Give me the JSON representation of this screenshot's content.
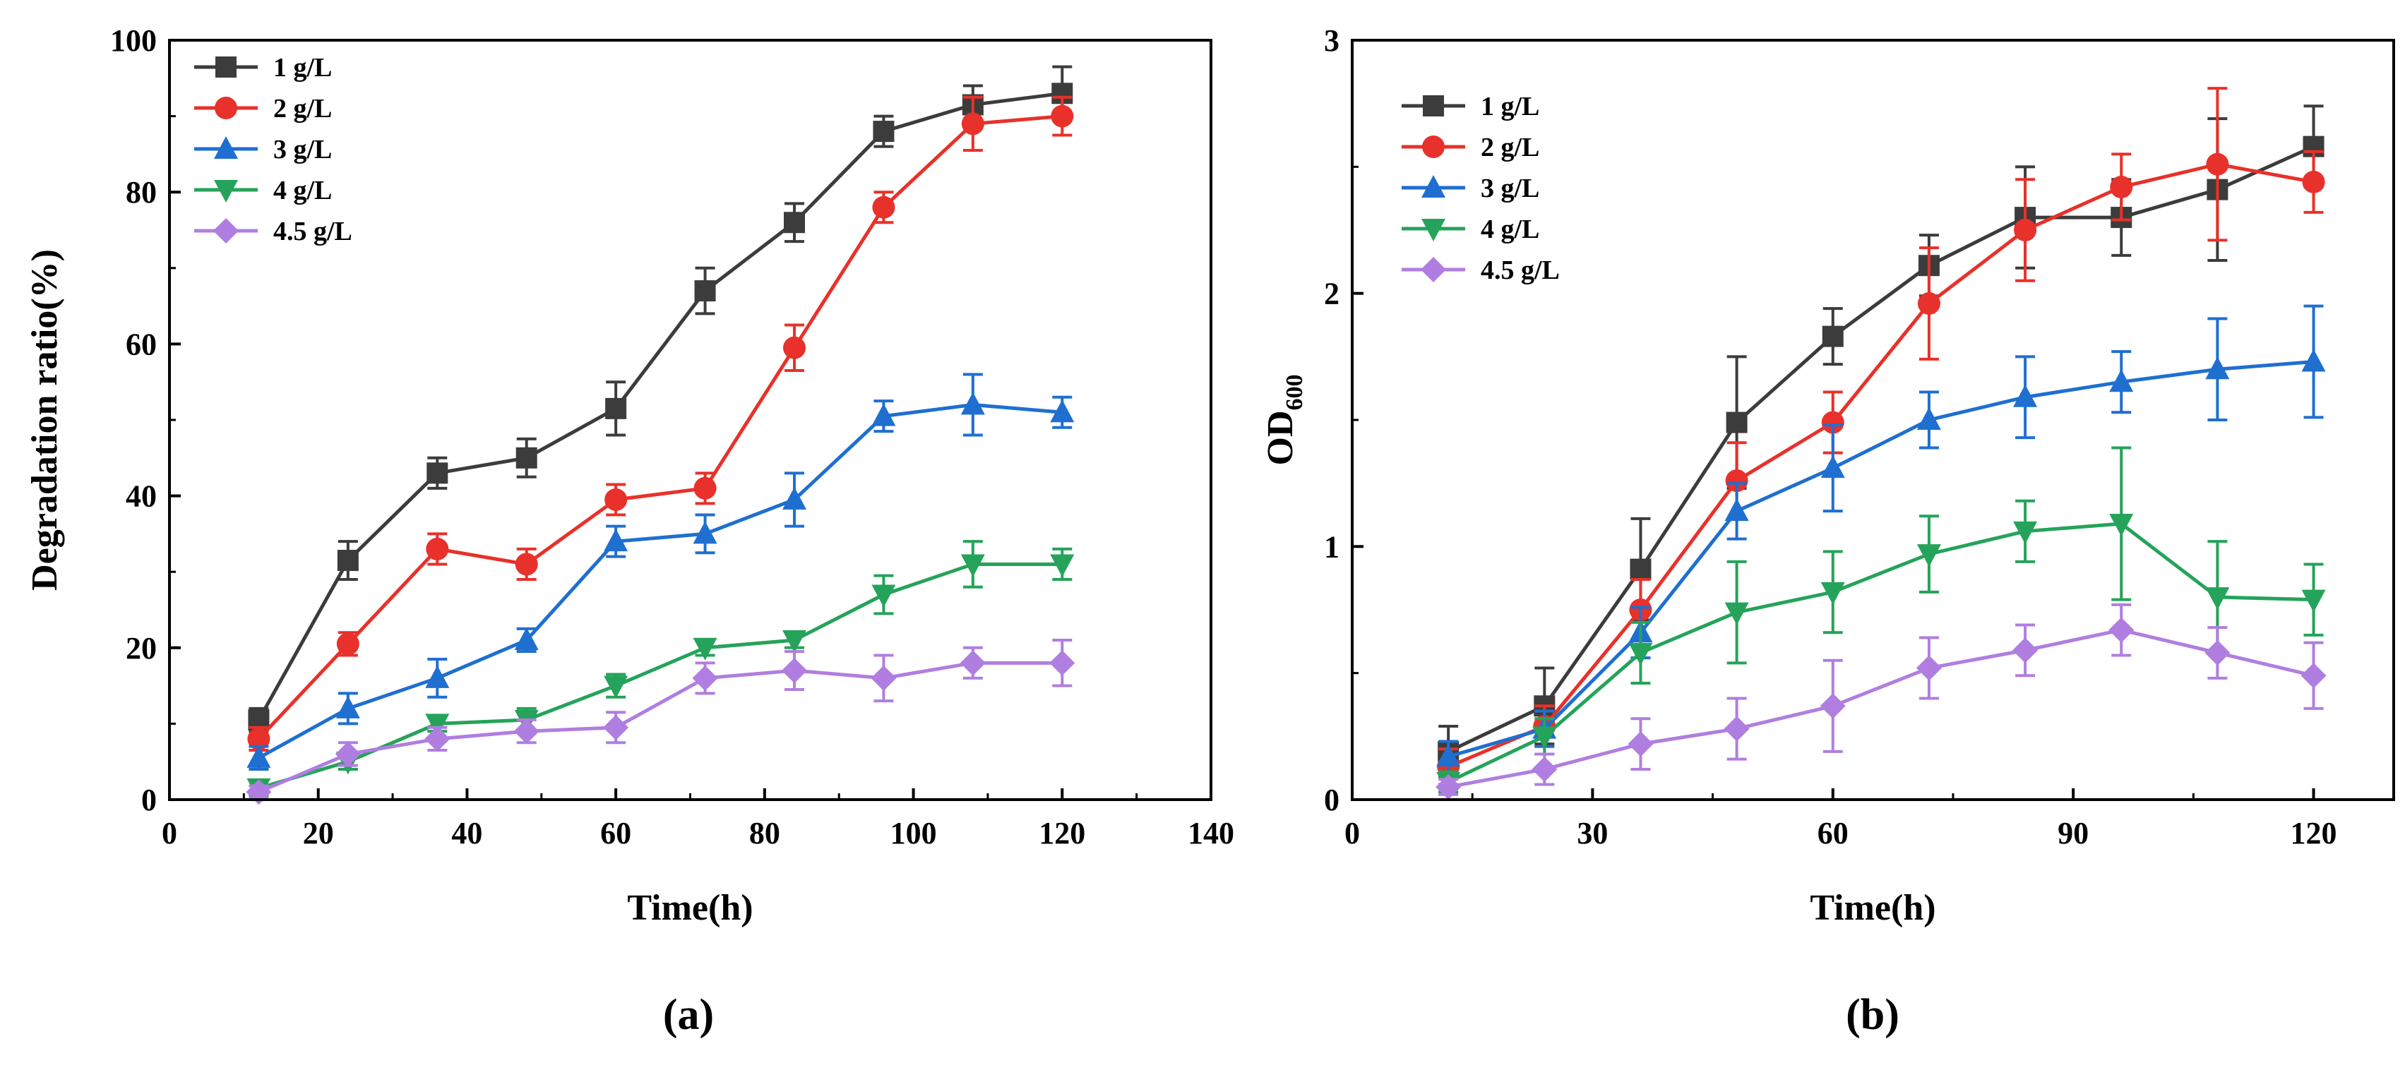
{
  "chart_data": [
    {
      "type": "line",
      "panel_label": "(a)",
      "xlabel": "Time(h)",
      "ylabel": "Degradation ratio(%)",
      "xlim": [
        0,
        140
      ],
      "ylim": [
        0,
        100
      ],
      "xticks": [
        "0",
        "20",
        "40",
        "60",
        "80",
        "100",
        "120",
        "140"
      ],
      "yticks": [
        "0",
        "20",
        "40",
        "60",
        "80",
        "100"
      ],
      "grid": false,
      "legend_position": "top-left",
      "x": [
        12,
        24,
        36,
        48,
        60,
        72,
        84,
        96,
        108,
        120
      ],
      "series": [
        {
          "name": "1 g/L",
          "color": "#3c3c3c",
          "marker": "square",
          "values": [
            10.5,
            31.5,
            43,
            45,
            51.5,
            67,
            76,
            88,
            91.5,
            93
          ],
          "errors": [
            1.5,
            2.5,
            2,
            2.5,
            3.5,
            3,
            2.5,
            2,
            2.5,
            3.5
          ]
        },
        {
          "name": "2 g/L",
          "color": "#e8312a",
          "marker": "circle",
          "values": [
            8,
            20.5,
            33,
            31,
            39.5,
            41,
            59.5,
            78,
            89,
            90
          ],
          "errors": [
            1.5,
            1.5,
            2,
            2,
            2,
            2,
            3,
            2,
            3.5,
            2.5
          ]
        },
        {
          "name": "3 g/L",
          "color": "#1f6fd0",
          "marker": "triangle-up",
          "values": [
            5.5,
            12,
            16,
            21,
            34,
            35,
            39.5,
            50.5,
            52,
            51
          ],
          "errors": [
            1.5,
            2,
            2.5,
            1.5,
            2,
            2.5,
            3.5,
            2,
            4,
            2
          ]
        },
        {
          "name": "4 g/L",
          "color": "#25a35a",
          "marker": "triangle-down",
          "values": [
            1.5,
            5,
            10,
            10.5,
            15,
            20,
            21,
            27,
            31,
            31
          ],
          "errors": [
            1,
            1,
            1,
            1.5,
            1.5,
            1,
            1,
            2.5,
            3,
            2
          ]
        },
        {
          "name": "4.5 g/L",
          "color": "#b07ee0",
          "marker": "diamond",
          "values": [
            1,
            6,
            8,
            9,
            9.5,
            16,
            17,
            16,
            18,
            18
          ],
          "errors": [
            0.8,
            1.5,
            1.5,
            1.5,
            2,
            2,
            2.5,
            3,
            2,
            3
          ]
        }
      ]
    },
    {
      "type": "line",
      "panel_label": "(b)",
      "xlabel": "Time(h)",
      "ylabel_main": "OD",
      "ylabel_sub": "600",
      "xlim": [
        0,
        130
      ],
      "ylim": [
        0,
        3
      ],
      "xticks": [
        "0",
        "30",
        "60",
        "90",
        "120"
      ],
      "yticks": [
        "0",
        "1",
        "2",
        "3"
      ],
      "grid": false,
      "legend_position": "top-left",
      "x": [
        12,
        24,
        36,
        48,
        60,
        72,
        84,
        96,
        108,
        120
      ],
      "series": [
        {
          "name": "1 g/L",
          "color": "#3c3c3c",
          "marker": "square",
          "values": [
            0.19,
            0.37,
            0.91,
            1.49,
            1.83,
            2.11,
            2.3,
            2.3,
            2.41,
            2.58
          ],
          "errors": [
            0.1,
            0.15,
            0.2,
            0.26,
            0.11,
            0.12,
            0.2,
            0.15,
            0.28,
            0.16
          ]
        },
        {
          "name": "2 g/L",
          "color": "#e8312a",
          "marker": "circle",
          "values": [
            0.13,
            0.29,
            0.75,
            1.26,
            1.49,
            1.96,
            2.25,
            2.42,
            2.51,
            2.44
          ],
          "errors": [
            0.07,
            0.08,
            0.12,
            0.15,
            0.12,
            0.22,
            0.2,
            0.13,
            0.3,
            0.12
          ]
        },
        {
          "name": "3 g/L",
          "color": "#1f6fd0",
          "marker": "triangle-up",
          "values": [
            0.17,
            0.28,
            0.66,
            1.14,
            1.31,
            1.5,
            1.59,
            1.65,
            1.7,
            1.73
          ],
          "errors": [
            0.06,
            0.07,
            0.1,
            0.11,
            0.17,
            0.11,
            0.16,
            0.12,
            0.2,
            0.22
          ]
        },
        {
          "name": "4 g/L",
          "color": "#25a35a",
          "marker": "triangle-down",
          "values": [
            0.07,
            0.25,
            0.58,
            0.74,
            0.82,
            0.97,
            1.06,
            1.09,
            0.8,
            0.79
          ],
          "errors": [
            0.04,
            0.07,
            0.12,
            0.2,
            0.16,
            0.15,
            0.12,
            0.3,
            0.22,
            0.14
          ]
        },
        {
          "name": "4.5 g/L",
          "color": "#b07ee0",
          "marker": "diamond",
          "values": [
            0.05,
            0.12,
            0.22,
            0.28,
            0.37,
            0.52,
            0.59,
            0.67,
            0.58,
            0.49
          ],
          "errors": [
            0.03,
            0.06,
            0.1,
            0.12,
            0.18,
            0.12,
            0.1,
            0.1,
            0.1,
            0.13
          ]
        }
      ]
    }
  ]
}
